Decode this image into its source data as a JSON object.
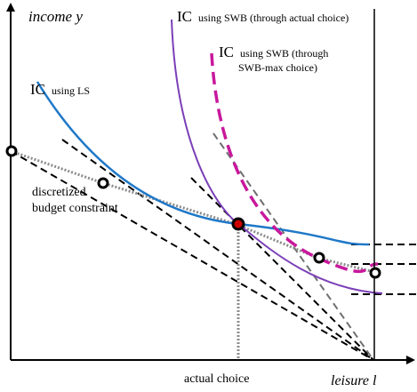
{
  "axes": {
    "y_label": "income y",
    "x_label": "leisure l"
  },
  "curves": {
    "ic_ls": {
      "prefix": "IC",
      "suffix": "using LS",
      "color": "#1f78c8"
    },
    "ic_swb_actual": {
      "prefix": "IC",
      "suffix": "using SWB (through actual choice)",
      "color": "#7b3fb8"
    },
    "ic_swb_max": {
      "prefix": "IC",
      "suffix_line1": "using SWB (through",
      "suffix_line2": "SWB-max choice)",
      "color": "#c8189c"
    }
  },
  "budget_constraint": {
    "label_line1": "discretized",
    "label_line2": "budget constraint",
    "color": "#8c8c8c"
  },
  "annotations": {
    "actual_choice": "actual choice"
  },
  "colors": {
    "tangent_lines": "#000000",
    "tangent_swb_max": "#6e6e6e",
    "actual_choice_point": "#cc0000"
  }
}
